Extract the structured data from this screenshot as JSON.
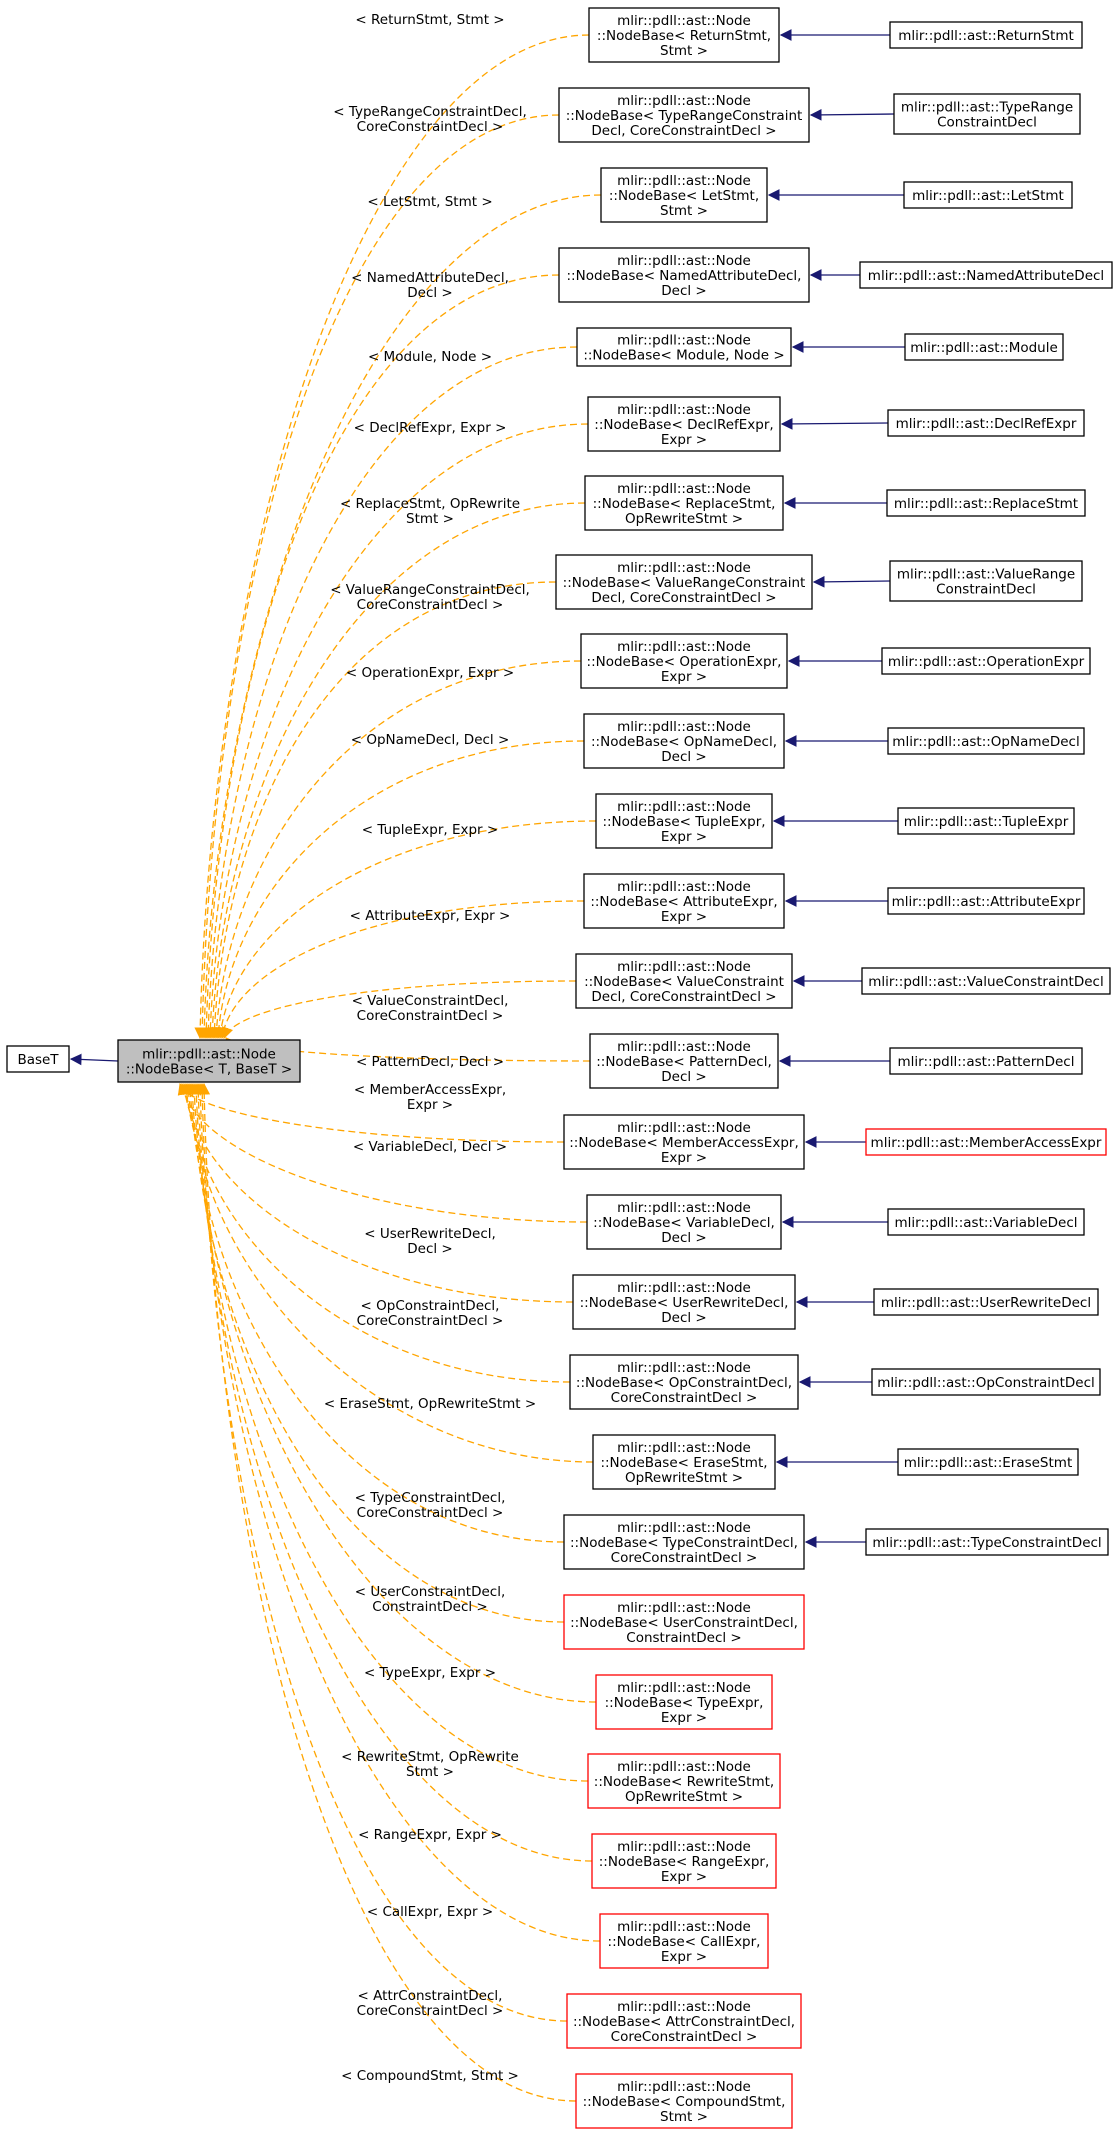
{
  "diagram": {
    "base_node": "BaseT",
    "main_node": [
      "mlir::pdll::ast::Node",
      "::NodeBase< T, BaseT >"
    ],
    "instantiations": [
      {
        "label": [
          "< ReturnStmt, Stmt >"
        ],
        "node": [
          "mlir::pdll::ast::Node",
          "::NodeBase< ReturnStmt,",
          "Stmt >"
        ],
        "child": [
          "mlir::pdll::ast::ReturnStmt"
        ],
        "child_red": false,
        "red": false
      },
      {
        "label": [
          "< TypeRangeConstraintDecl,",
          "CoreConstraintDecl >"
        ],
        "node": [
          "mlir::pdll::ast::Node",
          "::NodeBase< TypeRangeConstraint",
          "Decl, CoreConstraintDecl >"
        ],
        "child": [
          "mlir::pdll::ast::TypeRange",
          "ConstraintDecl"
        ],
        "child_red": false,
        "red": false
      },
      {
        "label": [
          "< LetStmt, Stmt >"
        ],
        "node": [
          "mlir::pdll::ast::Node",
          "::NodeBase< LetStmt,",
          "Stmt >"
        ],
        "child": [
          "mlir::pdll::ast::LetStmt"
        ],
        "child_red": false,
        "red": false
      },
      {
        "label": [
          "< NamedAttributeDecl,",
          "Decl >"
        ],
        "node": [
          "mlir::pdll::ast::Node",
          "::NodeBase< NamedAttributeDecl,",
          "Decl >"
        ],
        "child": [
          "mlir::pdll::ast::NamedAttributeDecl"
        ],
        "child_red": false,
        "red": false
      },
      {
        "label": [
          "< Module, Node >"
        ],
        "node": [
          "mlir::pdll::ast::Node",
          "::NodeBase< Module, Node >"
        ],
        "child": [
          "mlir::pdll::ast::Module"
        ],
        "child_red": false,
        "red": false
      },
      {
        "label": [
          "< DeclRefExpr, Expr >"
        ],
        "node": [
          "mlir::pdll::ast::Node",
          "::NodeBase< DeclRefExpr,",
          "Expr >"
        ],
        "child": [
          "mlir::pdll::ast::DeclRefExpr"
        ],
        "child_red": false,
        "red": false
      },
      {
        "label": [
          "< ReplaceStmt, OpRewrite",
          "Stmt >"
        ],
        "node": [
          "mlir::pdll::ast::Node",
          "::NodeBase< ReplaceStmt,",
          "OpRewriteStmt >"
        ],
        "child": [
          "mlir::pdll::ast::ReplaceStmt"
        ],
        "child_red": false,
        "red": false
      },
      {
        "label": [
          "< ValueRangeConstraintDecl,",
          "CoreConstraintDecl >"
        ],
        "node": [
          "mlir::pdll::ast::Node",
          "::NodeBase< ValueRangeConstraint",
          "Decl, CoreConstraintDecl >"
        ],
        "child": [
          "mlir::pdll::ast::ValueRange",
          "ConstraintDecl"
        ],
        "child_red": false,
        "red": false
      },
      {
        "label": [
          "< OperationExpr, Expr >"
        ],
        "node": [
          "mlir::pdll::ast::Node",
          "::NodeBase< OperationExpr,",
          "Expr >"
        ],
        "child": [
          "mlir::pdll::ast::OperationExpr"
        ],
        "child_red": false,
        "red": false
      },
      {
        "label": [
          "< OpNameDecl, Decl >"
        ],
        "node": [
          "mlir::pdll::ast::Node",
          "::NodeBase< OpNameDecl,",
          "Decl >"
        ],
        "child": [
          "mlir::pdll::ast::OpNameDecl"
        ],
        "child_red": false,
        "red": false
      },
      {
        "label": [
          "< TupleExpr, Expr >"
        ],
        "node": [
          "mlir::pdll::ast::Node",
          "::NodeBase< TupleExpr,",
          "Expr >"
        ],
        "child": [
          "mlir::pdll::ast::TupleExpr"
        ],
        "child_red": false,
        "red": false
      },
      {
        "label": [
          "< AttributeExpr, Expr >"
        ],
        "node": [
          "mlir::pdll::ast::Node",
          "::NodeBase< AttributeExpr,",
          "Expr >"
        ],
        "child": [
          "mlir::pdll::ast::AttributeExpr"
        ],
        "child_red": false,
        "red": false
      },
      {
        "label": [
          "< ValueConstraintDecl,",
          "CoreConstraintDecl >"
        ],
        "node": [
          "mlir::pdll::ast::Node",
          "::NodeBase< ValueConstraint",
          "Decl, CoreConstraintDecl >"
        ],
        "child": [
          "mlir::pdll::ast::ValueConstraintDecl"
        ],
        "child_red": false,
        "red": false
      },
      {
        "label": [
          "< PatternDecl, Decl >"
        ],
        "node": [
          "mlir::pdll::ast::Node",
          "::NodeBase< PatternDecl,",
          "Decl >"
        ],
        "child": [
          "mlir::pdll::ast::PatternDecl"
        ],
        "child_red": false,
        "red": false
      },
      {
        "label": [
          "< MemberAccessExpr,",
          "Expr >"
        ],
        "node": [
          "mlir::pdll::ast::Node",
          "::NodeBase< MemberAccessExpr,",
          "Expr >"
        ],
        "child": [
          "mlir::pdll::ast::MemberAccessExpr"
        ],
        "child_red": true,
        "red": false
      },
      {
        "label": [
          "< VariableDecl, Decl >"
        ],
        "node": [
          "mlir::pdll::ast::Node",
          "::NodeBase< VariableDecl,",
          "Decl >"
        ],
        "child": [
          "mlir::pdll::ast::VariableDecl"
        ],
        "child_red": false,
        "red": false
      },
      {
        "label": [
          "< UserRewriteDecl,",
          "Decl >"
        ],
        "node": [
          "mlir::pdll::ast::Node",
          "::NodeBase< UserRewriteDecl,",
          "Decl >"
        ],
        "child": [
          "mlir::pdll::ast::UserRewriteDecl"
        ],
        "child_red": false,
        "red": false
      },
      {
        "label": [
          "< OpConstraintDecl,",
          "CoreConstraintDecl >"
        ],
        "node": [
          "mlir::pdll::ast::Node",
          "::NodeBase< OpConstraintDecl,",
          "CoreConstraintDecl >"
        ],
        "child": [
          "mlir::pdll::ast::OpConstraintDecl"
        ],
        "child_red": false,
        "red": false
      },
      {
        "label": [
          "< EraseStmt, OpRewriteStmt >"
        ],
        "node": [
          "mlir::pdll::ast::Node",
          "::NodeBase< EraseStmt,",
          "OpRewriteStmt >"
        ],
        "child": [
          "mlir::pdll::ast::EraseStmt"
        ],
        "child_red": false,
        "red": false
      },
      {
        "label": [
          "< TypeConstraintDecl,",
          "CoreConstraintDecl >"
        ],
        "node": [
          "mlir::pdll::ast::Node",
          "::NodeBase< TypeConstraintDecl,",
          "CoreConstraintDecl >"
        ],
        "child": [
          "mlir::pdll::ast::TypeConstraintDecl"
        ],
        "child_red": false,
        "red": false
      },
      {
        "label": [
          "< UserConstraintDecl,",
          "ConstraintDecl >"
        ],
        "node": [
          "mlir::pdll::ast::Node",
          "::NodeBase< UserConstraintDecl,",
          "ConstraintDecl >"
        ],
        "child": null,
        "child_red": false,
        "red": true
      },
      {
        "label": [
          "< TypeExpr, Expr >"
        ],
        "node": [
          "mlir::pdll::ast::Node",
          "::NodeBase< TypeExpr,",
          "Expr >"
        ],
        "child": null,
        "child_red": false,
        "red": true
      },
      {
        "label": [
          "< RewriteStmt, OpRewrite",
          "Stmt >"
        ],
        "node": [
          "mlir::pdll::ast::Node",
          "::NodeBase< RewriteStmt,",
          "OpRewriteStmt >"
        ],
        "child": null,
        "child_red": false,
        "red": true
      },
      {
        "label": [
          "< RangeExpr, Expr >"
        ],
        "node": [
          "mlir::pdll::ast::Node",
          "::NodeBase< RangeExpr,",
          "Expr >"
        ],
        "child": null,
        "child_red": false,
        "red": true
      },
      {
        "label": [
          "< CallExpr, Expr >"
        ],
        "node": [
          "mlir::pdll::ast::Node",
          "::NodeBase< CallExpr,",
          "Expr >"
        ],
        "child": null,
        "child_red": false,
        "red": true
      },
      {
        "label": [
          "< AttrConstraintDecl,",
          "CoreConstraintDecl >"
        ],
        "node": [
          "mlir::pdll::ast::Node",
          "::NodeBase< AttrConstraintDecl,",
          "CoreConstraintDecl >"
        ],
        "child": null,
        "child_red": false,
        "red": true
      },
      {
        "label": [
          "< CompoundStmt, Stmt >"
        ],
        "node": [
          "mlir::pdll::ast::Node",
          "::NodeBase< CompoundStmt,",
          "Stmt >"
        ],
        "child": null,
        "child_red": false,
        "red": true
      }
    ]
  }
}
